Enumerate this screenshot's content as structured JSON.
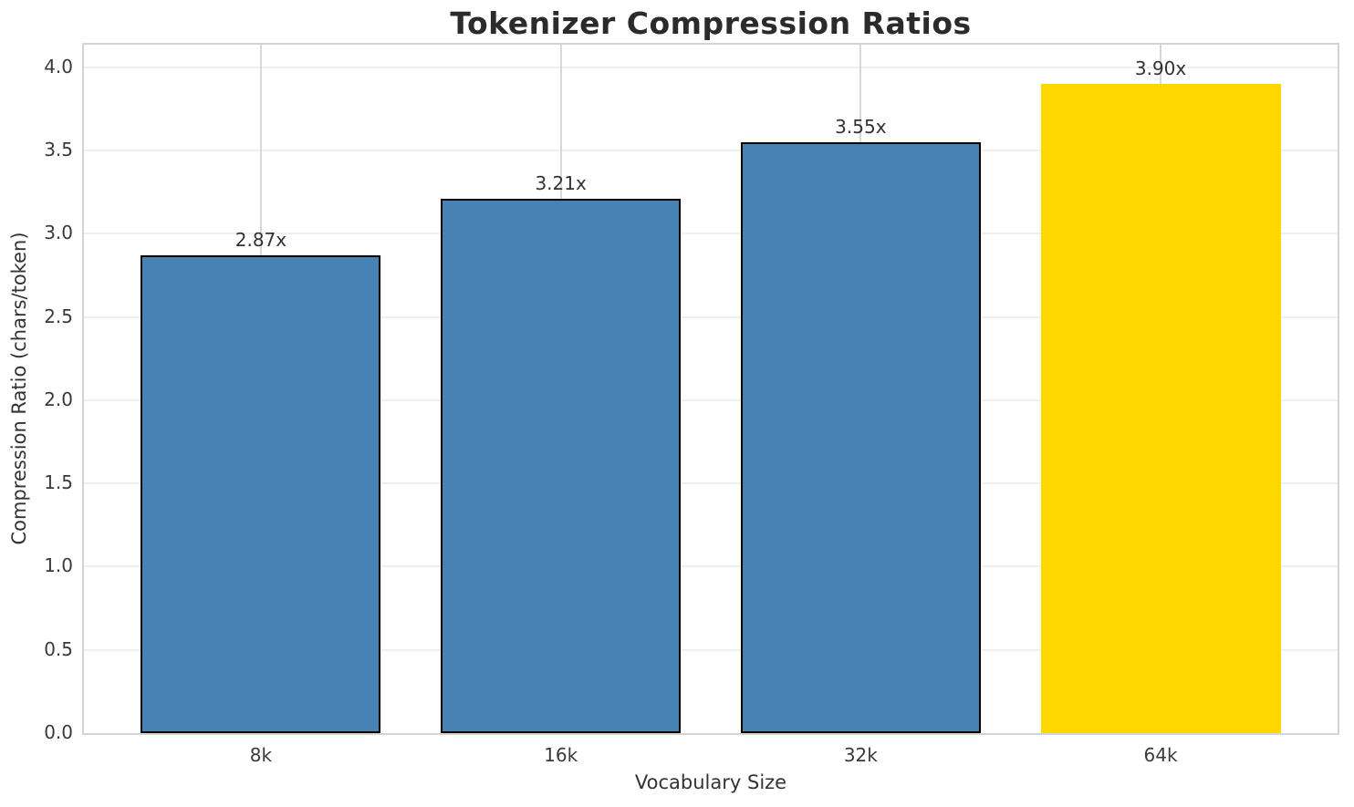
{
  "chart_data": {
    "type": "bar",
    "title": "Tokenizer Compression Ratios",
    "xlabel": "Vocabulary Size",
    "ylabel": "Compression Ratio (chars/token)",
    "categories": [
      "8k",
      "16k",
      "32k",
      "64k"
    ],
    "values": [
      2.87,
      3.21,
      3.55,
      3.9
    ],
    "bar_labels": [
      "2.87x",
      "3.21x",
      "3.55x",
      "3.90x"
    ],
    "bar_colors": [
      "#4682B4",
      "#4682B4",
      "#4682B4",
      "#FFD700"
    ],
    "bar_edge_colors": [
      "#000000",
      "#000000",
      "#000000",
      "none"
    ],
    "highlight_category": "64k",
    "ylim": [
      0,
      4.136
    ],
    "xlim": [
      -0.59,
      3.59
    ],
    "bar_width": 0.8,
    "yticks": [
      "0.0",
      "0.5",
      "1.0",
      "1.5",
      "2.0",
      "2.5",
      "3.0",
      "3.5",
      "4.0"
    ],
    "grid": true,
    "legend": "none"
  },
  "colors": {
    "bar_blue": "#4682B4",
    "bar_gold": "#FFD700",
    "bar_edge": "#000000",
    "grid_horizontal": "#efefef",
    "grid_vertical": "#d9d9d9",
    "spine": "#d4d4d4",
    "tick_text": "#3a3a3a",
    "title_text": "#2b2b2b"
  }
}
